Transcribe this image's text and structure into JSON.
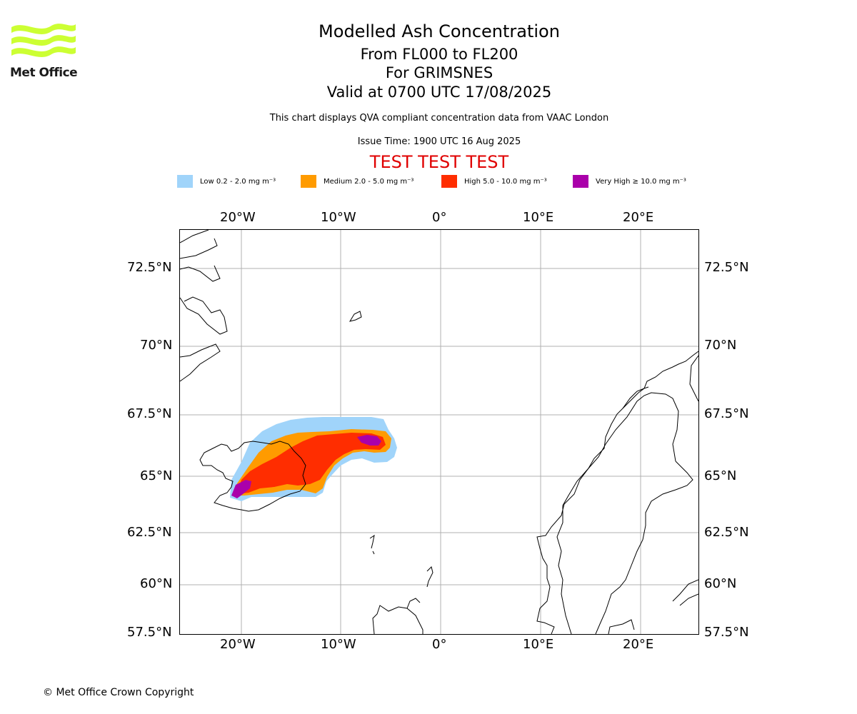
{
  "logo": {
    "text": "Met Office",
    "wave_color": "#ccff33"
  },
  "header": {
    "title": "Modelled Ash Concentration",
    "levels": "From FL000 to FL200",
    "volcano": "For GRIMSNES",
    "valid": "Valid at 0700 UTC 17/08/2025",
    "note": "This chart displays QVA compliant concentration data from VAAC London",
    "issue": "Issue Time: 1900 UTC 16 Aug 2025",
    "test_banner": "TEST TEST TEST",
    "test_color": "#e00000"
  },
  "legend": [
    {
      "label": "Low 0.2 - 2.0 mg m⁻³",
      "color": "#a0d4fa"
    },
    {
      "label": "Medium 2.0 - 5.0 mg m⁻³",
      "color": "#ff9b00"
    },
    {
      "label": "High 5.0 - 10.0 mg m⁻³",
      "color": "#ff2d00"
    },
    {
      "label": "Very High ≥ 10.0 mg m⁻³",
      "color": "#aa00aa"
    }
  ],
  "map": {
    "lon_ticks": [
      "20°W",
      "10°W",
      "0°",
      "10°E",
      "20°E"
    ],
    "lat_ticks": [
      "72.5°N",
      "70°N",
      "67.5°N",
      "65°N",
      "62.5°N",
      "60°N",
      "57.5°N"
    ],
    "lon_range": [
      -26,
      26
    ],
    "lat_range": [
      57.5,
      73.8
    ],
    "gridlines": true,
    "grid_color": "#b0b0b0",
    "coast_color": "#000000"
  },
  "footer": {
    "copyright": "© Met Office Crown Copyright"
  }
}
